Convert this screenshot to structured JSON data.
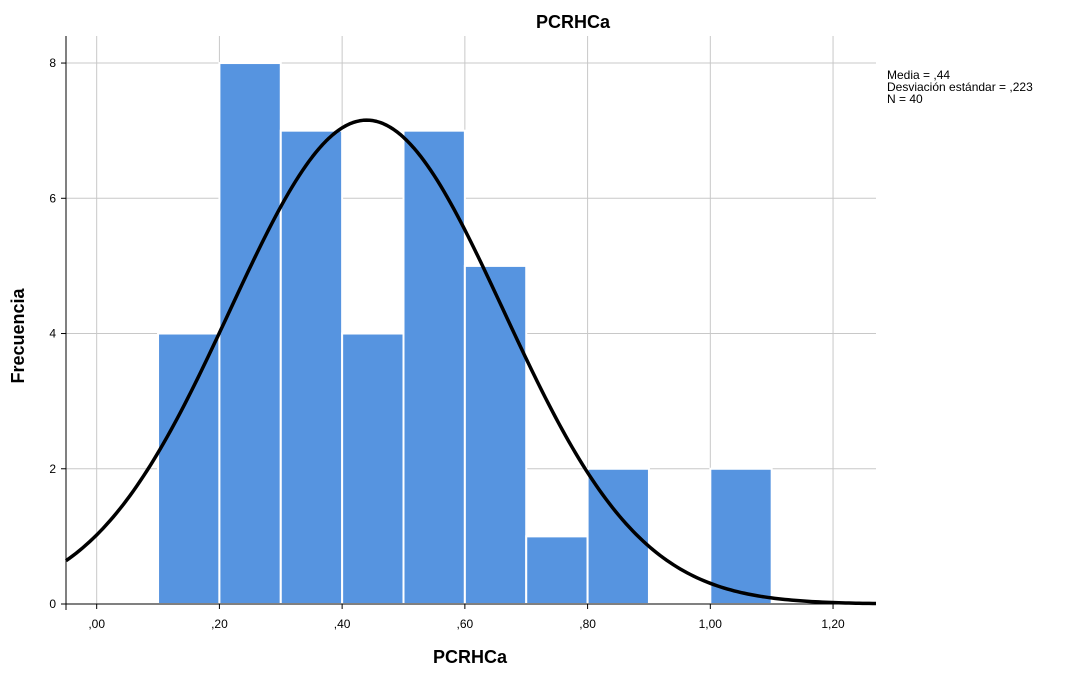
{
  "chart_data": {
    "type": "bar",
    "title": "PCRHCa",
    "xlabel": "PCRHCa",
    "ylabel": "Frecuencia",
    "xlim": [
      -0.05,
      1.27
    ],
    "ylim": [
      0,
      8.4
    ],
    "x_ticks": [
      {
        "value": 0.0,
        "label": ",00"
      },
      {
        "value": 0.2,
        "label": ",20"
      },
      {
        "value": 0.4,
        "label": ",40"
      },
      {
        "value": 0.6,
        "label": ",60"
      },
      {
        "value": 0.8,
        "label": ",80"
      },
      {
        "value": 1.0,
        "label": "1,00"
      },
      {
        "value": 1.2,
        "label": "1,20"
      }
    ],
    "y_ticks": [
      {
        "value": 0,
        "label": "0"
      },
      {
        "value": 2,
        "label": "2"
      },
      {
        "value": 4,
        "label": "4"
      },
      {
        "value": 6,
        "label": "6"
      },
      {
        "value": 8,
        "label": "8"
      }
    ],
    "bins": [
      {
        "x0": 0.1,
        "x1": 0.2,
        "count": 4
      },
      {
        "x0": 0.2,
        "x1": 0.3,
        "count": 8
      },
      {
        "x0": 0.3,
        "x1": 0.4,
        "count": 7
      },
      {
        "x0": 0.4,
        "x1": 0.5,
        "count": 4
      },
      {
        "x0": 0.5,
        "x1": 0.6,
        "count": 7
      },
      {
        "x0": 0.6,
        "x1": 0.7,
        "count": 5
      },
      {
        "x0": 0.7,
        "x1": 0.8,
        "count": 1
      },
      {
        "x0": 0.8,
        "x1": 0.9,
        "count": 2
      },
      {
        "x0": 0.9,
        "x1": 1.0,
        "count": 0
      },
      {
        "x0": 1.0,
        "x1": 1.1,
        "count": 2
      }
    ],
    "normal_curve": {
      "mean": 0.44,
      "sd": 0.223,
      "n": 40,
      "bin_width": 0.1
    },
    "stats": [
      "Media = ,44",
      "Desviación estándar = ,223",
      "N = 40"
    ],
    "grid": true,
    "colors": {
      "bar": "#5694e0",
      "bar_stroke": "#ffffff",
      "curve": "#000000",
      "grid": "#c8c8c8",
      "axis": "#000000"
    }
  }
}
